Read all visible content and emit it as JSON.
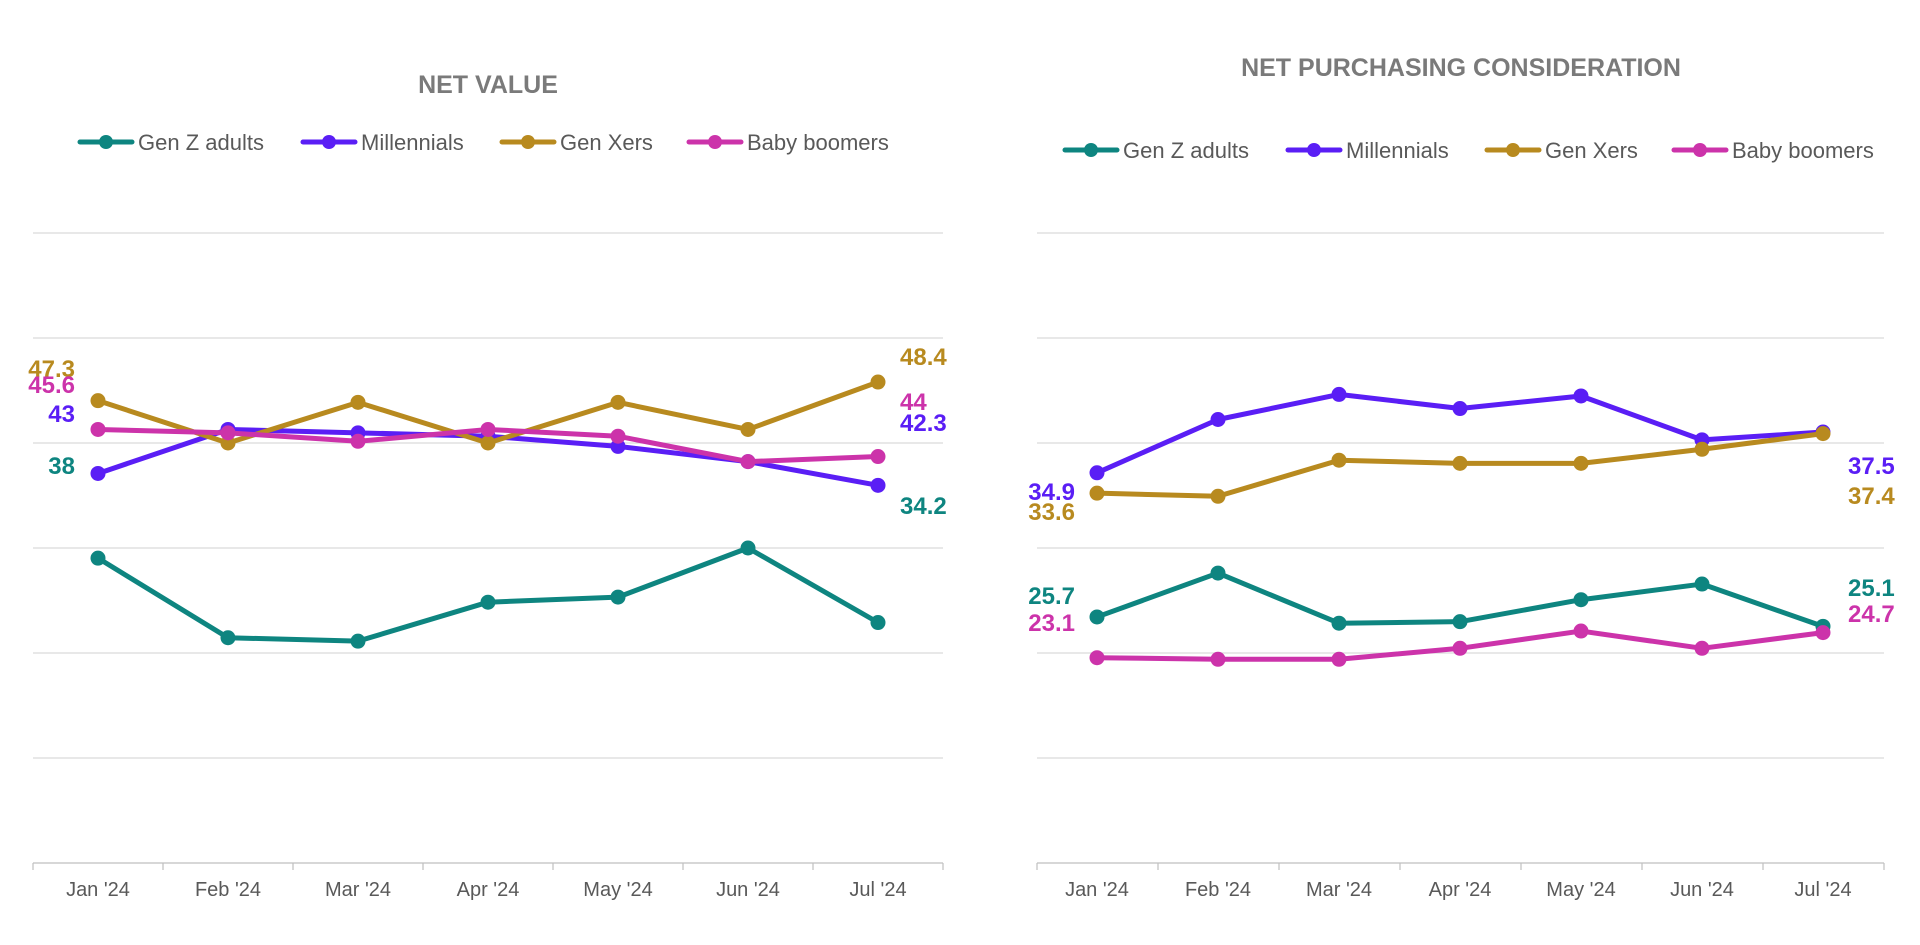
{
  "colors": {
    "gen_z": "#0e8580",
    "millennials": "#5a1ef5",
    "gen_x": "#b88a1f",
    "boomers": "#cc33aa"
  },
  "chart_data": [
    {
      "type": "line",
      "title": "NET VALUE",
      "categories": [
        "Jan '24",
        "Feb '24",
        "Mar '24",
        "Apr '24",
        "May '24",
        "Jun '24",
        "Jul '24"
      ],
      "series": [
        {
          "name": "Gen Z adults",
          "color_key": "gen_z",
          "values": [
            38,
            33.3,
            33.1,
            35.4,
            35.7,
            38.6,
            34.2
          ],
          "start_label": "38",
          "end_label": "34.2"
        },
        {
          "name": "Millennials",
          "color_key": "millennials",
          "values": [
            43,
            45.6,
            45.4,
            45.2,
            44.6,
            43.7,
            42.3
          ],
          "start_label": "43",
          "end_label": "42.3"
        },
        {
          "name": "Gen Xers",
          "color_key": "gen_x",
          "values": [
            47.3,
            44.8,
            47.2,
            44.8,
            47.2,
            45.6,
            48.4
          ],
          "start_label": "47.3",
          "end_label": "48.4"
        },
        {
          "name": "Baby boomers",
          "color_key": "boomers",
          "values": [
            45.6,
            45.4,
            44.9,
            45.6,
            45.2,
            43.7,
            44
          ],
          "start_label": "45.6",
          "end_label": "44"
        }
      ],
      "legend_position": "top",
      "grid": true
    },
    {
      "type": "line",
      "title": "NET PURCHASING CONSIDERATION",
      "categories": [
        "Jan '24",
        "Feb '24",
        "Mar '24",
        "Apr '24",
        "May '24",
        "Jun '24",
        "Jul '24"
      ],
      "series": [
        {
          "name": "Gen Z adults",
          "color_key": "gen_z",
          "values": [
            25.7,
            28.5,
            25.3,
            25.4,
            26.8,
            27.8,
            25.1
          ],
          "start_label": "25.7",
          "end_label": "25.1"
        },
        {
          "name": "Millennials",
          "color_key": "millennials",
          "values": [
            34.9,
            38.3,
            39.9,
            39,
            39.8,
            37,
            37.5
          ],
          "start_label": "34.9",
          "end_label": "37.5"
        },
        {
          "name": "Gen Xers",
          "color_key": "gen_x",
          "values": [
            33.6,
            33.4,
            35.7,
            35.5,
            35.5,
            36.4,
            37.4
          ],
          "start_label": "33.6",
          "end_label": "37.4"
        },
        {
          "name": "Baby boomers",
          "color_key": "boomers",
          "values": [
            23.1,
            23,
            23,
            23.7,
            24.8,
            23.7,
            24.7
          ],
          "start_label": "23.1",
          "end_label": "24.7"
        }
      ],
      "legend_position": "top",
      "grid": true
    }
  ]
}
